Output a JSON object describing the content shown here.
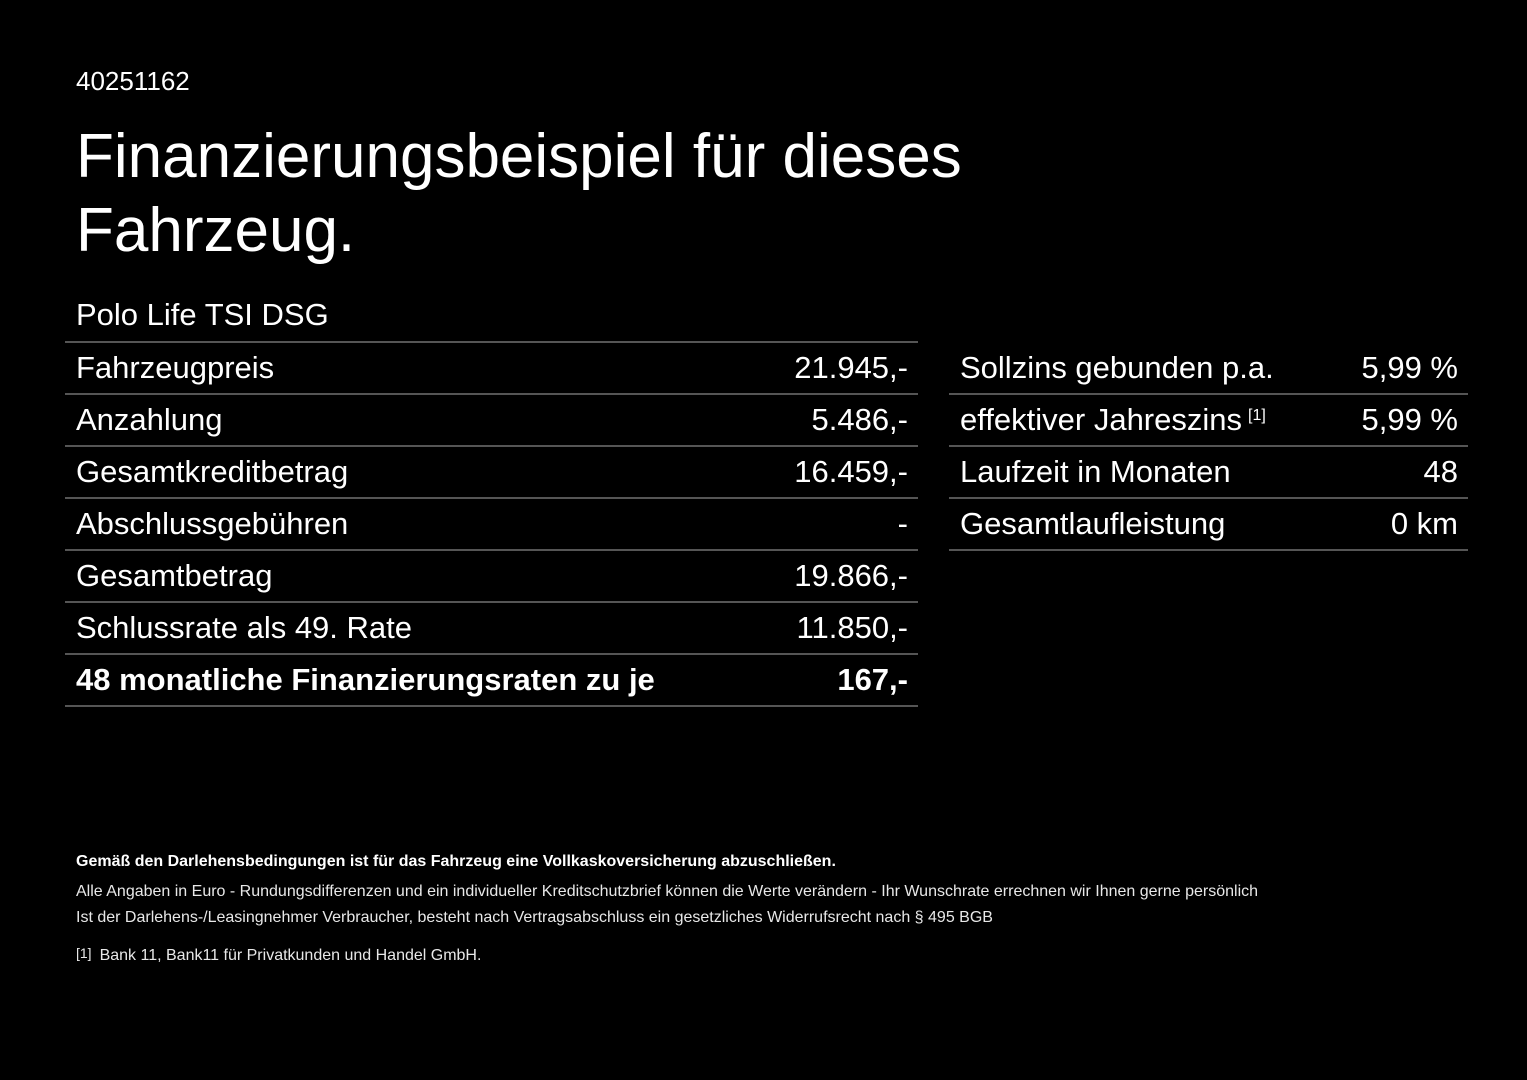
{
  "code": "40251162",
  "title": "Finanzierungsbeispiel für dieses Fahrzeug.",
  "model": "Polo Life TSI DSG",
  "left_table": [
    {
      "label": "Fahrzeugpreis",
      "value": "21.945,-"
    },
    {
      "label": "Anzahlung",
      "value": "5.486,-"
    },
    {
      "label": "Gesamtkreditbetrag",
      "value": "16.459,-"
    },
    {
      "label": "Abschlussgebühren",
      "value": "-"
    },
    {
      "label": "Gesamtbetrag",
      "value": "19.866,-"
    },
    {
      "label": "Schlussrate als 49. Rate",
      "value": "11.850,-"
    },
    {
      "label": "48 monatliche Finanzierungsraten zu je",
      "value": "167,-"
    }
  ],
  "right_table": [
    {
      "label": "Sollzins gebunden p.a.",
      "value": "5,99 %"
    },
    {
      "label": "effektiver Jahreszins",
      "footnote": "[1]",
      "value": "5,99 %"
    },
    {
      "label": "Laufzeit in Monaten",
      "value": "48"
    },
    {
      "label": "Gesamtlaufleistung",
      "value": "0 km"
    }
  ],
  "footer": {
    "insurance_note": "Gemäß den Darlehensbedingungen ist für das Fahrzeug eine Vollkaskoversicherung abzuschließen.",
    "note_euro": "Alle Angaben in Euro - Rundungsdifferenzen und ein individueller Kreditschutzbrief können die Werte verändern - Ihr Wunschrate errechnen wir Ihnen gerne persönlich",
    "note_withdrawal": "Ist der Darlehens-/Leasingnehmer Verbraucher, besteht nach Vertragsabschluss ein gesetzliches Widerrufsrecht nach § 495 BGB",
    "footnote_ref": "[1]",
    "footnote_text": "Bank 11, Bank11 für Privatkunden und Handel GmbH."
  }
}
